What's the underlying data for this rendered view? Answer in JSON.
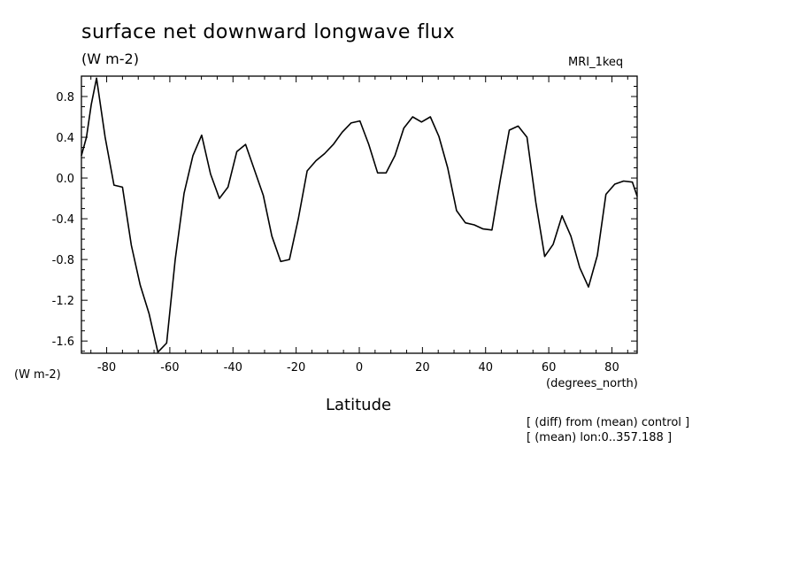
{
  "chart_data": {
    "type": "line",
    "title": "surface net downward longwave flux",
    "units": "(W m-2)",
    "model": "MRI_1keq",
    "ylabel_unit": "(W m-2)",
    "xlabel_unit": "(degrees_north)",
    "xlabel": "Latitude",
    "notes": [
      "[ (diff) from (mean) control ]",
      "[ (mean) lon:0..357.188 ]"
    ],
    "xlim": [
      -88,
      88
    ],
    "ylim": [
      -1.72,
      1.0
    ],
    "x_ticks": [
      -80,
      -60,
      -40,
      -20,
      0,
      20,
      40,
      60,
      80
    ],
    "x_tick_labels": [
      "-80",
      "-60",
      "-40",
      "-20",
      "0",
      "20",
      "40",
      "60",
      "80"
    ],
    "y_ticks": [
      0.8,
      0.4,
      0.0,
      -0.4,
      -0.8,
      -1.2,
      -1.6
    ],
    "y_tick_labels": [
      "0.8",
      "0.4",
      "0.0",
      "-0.4",
      "-0.8",
      "-1.2",
      "-1.6"
    ],
    "grid": false,
    "series": [
      {
        "x": [
          -88,
          -86.4,
          -84.9,
          -83.2,
          -80.5,
          -77.7,
          -75.0,
          -72.2,
          -69.4,
          -66.6,
          -63.8,
          -61.0,
          -58.3,
          -55.5,
          -52.7,
          -49.9,
          -47.1,
          -44.3,
          -41.6,
          -38.8,
          -36.0,
          -33.2,
          -30.4,
          -27.7,
          -24.9,
          -22.1,
          -19.3,
          -16.5,
          -13.7,
          -11.0,
          -8.2,
          -5.4,
          -2.6,
          0.2,
          3.0,
          5.8,
          8.5,
          11.3,
          14.1,
          16.9,
          19.7,
          22.5,
          25.2,
          28.0,
          30.8,
          33.6,
          36.4,
          39.2,
          42.0,
          44.7,
          47.5,
          50.3,
          53.1,
          55.9,
          58.7,
          61.4,
          64.2,
          67.0,
          69.8,
          72.6,
          75.4,
          78.1,
          80.9,
          83.7,
          86.5,
          88.0
        ],
        "y": [
          0.22,
          0.4,
          0.72,
          0.98,
          0.4,
          -0.07,
          -0.09,
          -0.66,
          -1.05,
          -1.33,
          -1.71,
          -1.62,
          -0.8,
          -0.15,
          0.22,
          0.42,
          0.04,
          -0.2,
          -0.09,
          0.26,
          0.33,
          0.08,
          -0.17,
          -0.57,
          -0.82,
          -0.8,
          -0.4,
          0.07,
          0.17,
          0.24,
          0.33,
          0.45,
          0.54,
          0.56,
          0.33,
          0.05,
          0.05,
          0.22,
          0.49,
          0.6,
          0.55,
          0.6,
          0.41,
          0.1,
          -0.32,
          -0.44,
          -0.46,
          -0.5,
          -0.51,
          -0.01,
          0.47,
          0.51,
          0.4,
          -0.24,
          -0.77,
          -0.65,
          -0.37,
          -0.57,
          -0.88,
          -1.07,
          -0.76,
          -0.16,
          -0.06,
          -0.03,
          -0.04,
          -0.18
        ]
      }
    ]
  }
}
